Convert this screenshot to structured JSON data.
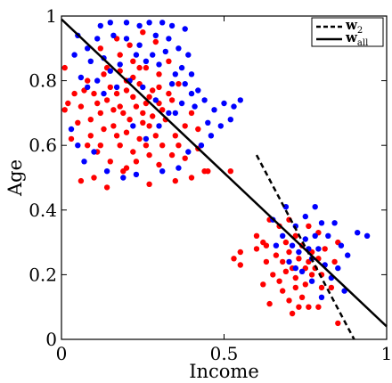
{
  "chart_data": {
    "type": "scatter",
    "xlabel": "Income",
    "ylabel": "Age",
    "xlim": [
      0,
      1
    ],
    "ylim": [
      0,
      1
    ],
    "x_ticks": [
      0,
      0.5,
      1
    ],
    "x_tick_labels": [
      "0",
      "0.5",
      "1"
    ],
    "y_ticks": [
      0,
      0.2,
      0.4,
      0.6,
      0.8,
      1
    ],
    "y_tick_labels": [
      "0",
      "0.2",
      "0.4",
      "0.6",
      "0.8",
      "1"
    ],
    "grid": false,
    "legend_position": "top-right",
    "legend": [
      {
        "label_main": "w",
        "label_sub": "2",
        "style": "dashed"
      },
      {
        "label_main": "w",
        "label_sub": "all",
        "style": "solid"
      }
    ],
    "lines": [
      {
        "style": "dashed",
        "x": [
          0.6,
          0.9
        ],
        "y": [
          0.57,
          0.0
        ]
      },
      {
        "style": "solid",
        "x": [
          0.0,
          1.0
        ],
        "y": [
          0.99,
          0.04
        ]
      }
    ],
    "series": [
      {
        "color": "#ff0000",
        "points": [
          [
            0.15,
            0.78
          ],
          [
            0.18,
            0.72
          ],
          [
            0.2,
            0.8
          ],
          [
            0.22,
            0.75
          ],
          [
            0.25,
            0.7
          ],
          [
            0.28,
            0.77
          ],
          [
            0.3,
            0.73
          ],
          [
            0.12,
            0.7
          ],
          [
            0.1,
            0.76
          ],
          [
            0.16,
            0.66
          ],
          [
            0.2,
            0.64
          ],
          [
            0.24,
            0.62
          ],
          [
            0.27,
            0.66
          ],
          [
            0.32,
            0.68
          ],
          [
            0.34,
            0.74
          ],
          [
            0.36,
            0.79
          ],
          [
            0.14,
            0.84
          ],
          [
            0.18,
            0.88
          ],
          [
            0.22,
            0.86
          ],
          [
            0.26,
            0.84
          ],
          [
            0.3,
            0.82
          ],
          [
            0.33,
            0.86
          ],
          [
            0.08,
            0.8
          ],
          [
            0.06,
            0.72
          ],
          [
            0.05,
            0.67
          ],
          [
            0.04,
            0.76
          ],
          [
            0.02,
            0.73
          ],
          [
            0.01,
            0.84
          ],
          [
            0.09,
            0.63
          ],
          [
            0.11,
            0.58
          ],
          [
            0.15,
            0.55
          ],
          [
            0.19,
            0.52
          ],
          [
            0.23,
            0.55
          ],
          [
            0.27,
            0.57
          ],
          [
            0.31,
            0.6
          ],
          [
            0.35,
            0.63
          ],
          [
            0.38,
            0.66
          ],
          [
            0.4,
            0.7
          ],
          [
            0.12,
            0.9
          ],
          [
            0.17,
            0.93
          ],
          [
            0.21,
            0.91
          ],
          [
            0.25,
            0.95
          ],
          [
            0.29,
            0.92
          ],
          [
            0.13,
            0.82
          ],
          [
            0.17,
            0.76
          ],
          [
            0.21,
            0.68
          ],
          [
            0.24,
            0.79
          ],
          [
            0.26,
            0.73
          ],
          [
            0.28,
            0.69
          ],
          [
            0.3,
            0.78
          ],
          [
            0.19,
            0.7
          ],
          [
            0.23,
            0.72
          ],
          [
            0.27,
            0.75
          ],
          [
            0.16,
            0.71
          ],
          [
            0.14,
            0.74
          ],
          [
            0.2,
            0.77
          ],
          [
            0.22,
            0.81
          ],
          [
            0.25,
            0.67
          ],
          [
            0.31,
            0.71
          ],
          [
            0.33,
            0.76
          ],
          [
            0.09,
            0.68
          ],
          [
            0.07,
            0.77
          ],
          [
            0.11,
            0.73
          ],
          [
            0.13,
            0.65
          ],
          [
            0.18,
            0.6
          ],
          [
            0.22,
            0.58
          ],
          [
            0.26,
            0.6
          ],
          [
            0.29,
            0.63
          ],
          [
            0.24,
            0.84
          ],
          [
            0.18,
            0.83
          ],
          [
            0.06,
            0.49
          ],
          [
            0.1,
            0.5
          ],
          [
            0.14,
            0.47
          ],
          [
            0.27,
            0.48
          ],
          [
            0.35,
            0.49
          ],
          [
            0.4,
            0.5
          ],
          [
            0.44,
            0.52
          ],
          [
            0.52,
            0.52
          ],
          [
            0.01,
            0.71
          ],
          [
            0.03,
            0.62
          ],
          [
            0.2,
            0.53
          ],
          [
            0.3,
            0.54
          ],
          [
            0.34,
            0.57
          ],
          [
            0.36,
            0.6
          ],
          [
            0.17,
            0.63
          ],
          [
            0.12,
            0.6
          ],
          [
            0.08,
            0.6
          ],
          [
            0.42,
            0.65
          ],
          [
            0.42,
            0.59
          ],
          [
            0.38,
            0.56
          ],
          [
            0.55,
            0.27
          ],
          [
            0.62,
            0.3
          ],
          [
            0.63,
            0.29
          ],
          [
            0.66,
            0.26
          ],
          [
            0.68,
            0.24
          ],
          [
            0.69,
            0.3
          ],
          [
            0.7,
            0.27
          ],
          [
            0.71,
            0.22
          ],
          [
            0.72,
            0.19
          ],
          [
            0.73,
            0.25
          ],
          [
            0.74,
            0.29
          ],
          [
            0.75,
            0.22
          ],
          [
            0.75,
            0.17
          ],
          [
            0.76,
            0.24
          ],
          [
            0.77,
            0.2
          ],
          [
            0.77,
            0.27
          ],
          [
            0.78,
            0.22
          ],
          [
            0.79,
            0.25
          ],
          [
            0.8,
            0.2
          ],
          [
            0.8,
            0.16
          ],
          [
            0.74,
            0.13
          ],
          [
            0.73,
            0.1
          ],
          [
            0.76,
            0.1
          ],
          [
            0.7,
            0.12
          ],
          [
            0.68,
            0.15
          ],
          [
            0.65,
            0.2
          ],
          [
            0.63,
            0.24
          ],
          [
            0.62,
            0.17
          ],
          [
            0.64,
            0.11
          ],
          [
            0.72,
            0.32
          ],
          [
            0.76,
            0.35
          ],
          [
            0.79,
            0.33
          ],
          [
            0.81,
            0.28
          ],
          [
            0.84,
            0.24
          ],
          [
            0.85,
            0.3
          ],
          [
            0.67,
            0.35
          ],
          [
            0.7,
            0.37
          ],
          [
            0.6,
            0.32
          ],
          [
            0.71,
            0.08
          ],
          [
            0.85,
            0.05
          ],
          [
            0.55,
            0.23
          ],
          [
            0.67,
            0.18
          ],
          [
            0.72,
            0.16
          ],
          [
            0.69,
            0.21
          ],
          [
            0.64,
            0.37
          ],
          [
            0.6,
            0.28
          ],
          [
            0.83,
            0.16
          ],
          [
            0.79,
            0.1
          ],
          [
            0.53,
            0.25
          ],
          [
            0.45,
            0.52
          ]
        ]
      },
      {
        "color": "#0000ff",
        "points": [
          [
            0.12,
            0.97
          ],
          [
            0.15,
            0.98
          ],
          [
            0.2,
            0.98
          ],
          [
            0.24,
            0.97
          ],
          [
            0.27,
            0.98
          ],
          [
            0.31,
            0.98
          ],
          [
            0.34,
            0.97
          ],
          [
            0.38,
            0.96
          ],
          [
            0.29,
            0.94
          ],
          [
            0.33,
            0.93
          ],
          [
            0.36,
            0.9
          ],
          [
            0.39,
            0.88
          ],
          [
            0.32,
            0.89
          ],
          [
            0.28,
            0.88
          ],
          [
            0.24,
            0.91
          ],
          [
            0.2,
            0.93
          ],
          [
            0.16,
            0.94
          ],
          [
            0.11,
            0.93
          ],
          [
            0.08,
            0.9
          ],
          [
            0.05,
            0.94
          ],
          [
            0.04,
            0.88
          ],
          [
            0.09,
            0.86
          ],
          [
            0.13,
            0.87
          ],
          [
            0.37,
            0.84
          ],
          [
            0.4,
            0.82
          ],
          [
            0.42,
            0.77
          ],
          [
            0.44,
            0.74
          ],
          [
            0.47,
            0.71
          ],
          [
            0.5,
            0.73
          ],
          [
            0.53,
            0.72
          ],
          [
            0.55,
            0.74
          ],
          [
            0.52,
            0.68
          ],
          [
            0.49,
            0.66
          ],
          [
            0.45,
            0.67
          ],
          [
            0.41,
            0.72
          ],
          [
            0.38,
            0.79
          ],
          [
            0.35,
            0.82
          ],
          [
            0.3,
            0.85
          ],
          [
            0.26,
            0.86
          ],
          [
            0.23,
            0.88
          ],
          [
            0.18,
            0.85
          ],
          [
            0.15,
            0.83
          ],
          [
            0.11,
            0.8
          ],
          [
            0.08,
            0.78
          ],
          [
            0.06,
            0.81
          ],
          [
            0.03,
            0.65
          ],
          [
            0.05,
            0.6
          ],
          [
            0.07,
            0.55
          ],
          [
            0.1,
            0.58
          ],
          [
            0.14,
            0.52
          ],
          [
            0.19,
            0.5
          ],
          [
            0.23,
            0.51
          ],
          [
            0.31,
            0.52
          ],
          [
            0.36,
            0.53
          ],
          [
            0.39,
            0.58
          ],
          [
            0.43,
            0.6
          ],
          [
            0.46,
            0.63
          ],
          [
            0.33,
            0.7
          ],
          [
            0.29,
            0.74
          ],
          [
            0.25,
            0.78
          ],
          [
            0.21,
            0.8
          ],
          [
            0.17,
            0.78
          ],
          [
            0.13,
            0.76
          ],
          [
            0.22,
            0.66
          ],
          [
            0.26,
            0.62
          ],
          [
            0.3,
            0.66
          ],
          [
            0.35,
            0.7
          ],
          [
            0.37,
            0.73
          ],
          [
            0.4,
            0.76
          ],
          [
            0.34,
            0.79
          ],
          [
            0.65,
            0.37
          ],
          [
            0.69,
            0.41
          ],
          [
            0.72,
            0.35
          ],
          [
            0.75,
            0.38
          ],
          [
            0.78,
            0.41
          ],
          [
            0.8,
            0.36
          ],
          [
            0.82,
            0.32
          ],
          [
            0.84,
            0.36
          ],
          [
            0.86,
            0.29
          ],
          [
            0.88,
            0.26
          ],
          [
            0.91,
            0.33
          ],
          [
            0.94,
            0.32
          ],
          [
            0.81,
            0.23
          ],
          [
            0.79,
            0.28
          ],
          [
            0.77,
            0.25
          ],
          [
            0.75,
            0.31
          ],
          [
            0.73,
            0.27
          ],
          [
            0.71,
            0.29
          ],
          [
            0.68,
            0.32
          ],
          [
            0.66,
            0.29
          ],
          [
            0.7,
            0.24
          ],
          [
            0.74,
            0.21
          ],
          [
            0.77,
            0.18
          ],
          [
            0.8,
            0.13
          ],
          [
            0.83,
            0.19
          ],
          [
            0.85,
            0.22
          ],
          [
            0.87,
            0.15
          ],
          [
            0.78,
            0.32
          ],
          [
            0.76,
            0.28
          ],
          [
            0.72,
            0.22
          ]
        ]
      }
    ]
  }
}
